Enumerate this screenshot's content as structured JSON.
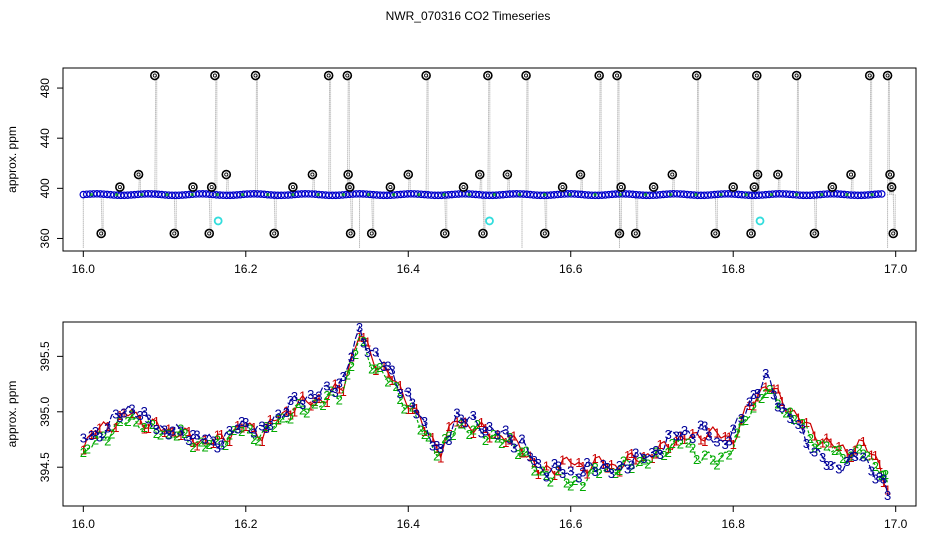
{
  "title": "NWR_070316  CO2 Timeseries",
  "colors": {
    "black": "#000000",
    "trace": "#999999",
    "blue": "#0000cc",
    "cyan": "#33dddd",
    "red": "#cc0000",
    "green": "#00aa00",
    "dark_blue": "#000099"
  },
  "chart_data": [
    {
      "type": "scatter",
      "ylabel": "approx. ppm",
      "xlim": [
        15.975,
        17.025
      ],
      "ylim": [
        350,
        496
      ],
      "x_ticks": [
        16.0,
        16.2,
        16.4,
        16.6,
        16.8,
        17.0
      ],
      "x_tick_labels": [
        "16.0",
        "16.2",
        "16.4",
        "16.6",
        "16.8",
        "17.0"
      ],
      "y_ticks": [
        360,
        400,
        440,
        480
      ],
      "y_tick_labels": [
        "360",
        "400",
        "440",
        "480"
      ],
      "baseline_ppm": 395,
      "series": [
        {
          "role": "calibration-markers",
          "color": "#000000",
          "points": [
            [
              16.022,
              364
            ],
            [
              16.045,
              401
            ],
            [
              16.068,
              411
            ],
            [
              16.088,
              490
            ],
            [
              16.112,
              364
            ],
            [
              16.135,
              401
            ],
            [
              16.155,
              364
            ],
            [
              16.158,
              401
            ],
            [
              16.162,
              490
            ],
            [
              16.176,
              411
            ],
            [
              16.212,
              490
            ],
            [
              16.235,
              364
            ],
            [
              16.258,
              401
            ],
            [
              16.282,
              411
            ],
            [
              16.302,
              490
            ],
            [
              16.325,
              490
            ],
            [
              16.326,
              411
            ],
            [
              16.328,
              401
            ],
            [
              16.329,
              364
            ],
            [
              16.355,
              364
            ],
            [
              16.378,
              401
            ],
            [
              16.4,
              411
            ],
            [
              16.422,
              490
            ],
            [
              16.445,
              364
            ],
            [
              16.468,
              401
            ],
            [
              16.488,
              411
            ],
            [
              16.492,
              364
            ],
            [
              16.498,
              490
            ],
            [
              16.522,
              411
            ],
            [
              16.545,
              490
            ],
            [
              16.568,
              364
            ],
            [
              16.59,
              401
            ],
            [
              16.612,
              411
            ],
            [
              16.635,
              490
            ],
            [
              16.657,
              490
            ],
            [
              16.66,
              364
            ],
            [
              16.662,
              401
            ],
            [
              16.68,
              364
            ],
            [
              16.702,
              401
            ],
            [
              16.725,
              411
            ],
            [
              16.755,
              490
            ],
            [
              16.778,
              364
            ],
            [
              16.8,
              401
            ],
            [
              16.822,
              364
            ],
            [
              16.826,
              401
            ],
            [
              16.829,
              490
            ],
            [
              16.83,
              411
            ],
            [
              16.855,
              411
            ],
            [
              16.878,
              490
            ],
            [
              16.9,
              364
            ],
            [
              16.922,
              401
            ],
            [
              16.945,
              411
            ],
            [
              16.968,
              490
            ],
            [
              16.99,
              490
            ],
            [
              16.993,
              411
            ],
            [
              16.995,
              401
            ],
            [
              16.997,
              364
            ]
          ]
        },
        {
          "role": "cyan-markers",
          "color": "#33dddd",
          "points": [
            [
              16.166,
              374
            ],
            [
              16.5,
              374
            ],
            [
              16.833,
              374
            ]
          ]
        }
      ]
    },
    {
      "type": "line",
      "ylabel": "approx. ppm",
      "xlim": [
        15.975,
        17.025
      ],
      "ylim": [
        394.15,
        395.81
      ],
      "x_ticks": [
        16.0,
        16.2,
        16.4,
        16.6,
        16.8,
        17.0
      ],
      "x_tick_labels": [
        "16.0",
        "16.2",
        "16.4",
        "16.6",
        "16.8",
        "17.0"
      ],
      "y_ticks": [
        394.5,
        395.0,
        395.5
      ],
      "y_tick_labels": [
        "394.5",
        "395.0",
        "395.5"
      ],
      "x": [
        16.0,
        16.02,
        16.04,
        16.06,
        16.08,
        16.1,
        16.12,
        16.14,
        16.16,
        16.18,
        16.2,
        16.22,
        16.24,
        16.26,
        16.28,
        16.3,
        16.32,
        16.34,
        16.36,
        16.38,
        16.4,
        16.42,
        16.44,
        16.46,
        16.48,
        16.5,
        16.52,
        16.54,
        16.56,
        16.58,
        16.6,
        16.62,
        16.64,
        16.66,
        16.68,
        16.7,
        16.72,
        16.74,
        16.76,
        16.78,
        16.8,
        16.82,
        16.84,
        16.86,
        16.88,
        16.9,
        16.92,
        16.94,
        16.96,
        16.98,
        16.99
      ],
      "series": [
        {
          "name": "1",
          "color": "#cc0000",
          "values": [
            394.7,
            394.85,
            394.9,
            395.0,
            394.88,
            394.85,
            394.8,
            394.75,
            394.72,
            394.8,
            394.88,
            394.8,
            394.95,
            395.05,
            395.1,
            395.12,
            395.25,
            395.7,
            395.45,
            395.3,
            395.1,
            394.85,
            394.65,
            394.95,
            394.85,
            394.82,
            394.75,
            394.7,
            394.45,
            394.5,
            394.55,
            394.5,
            394.55,
            394.5,
            394.6,
            394.6,
            394.72,
            394.75,
            394.8,
            394.8,
            394.75,
            395.05,
            395.25,
            395.1,
            394.95,
            394.8,
            394.7,
            394.65,
            394.7,
            394.55,
            394.3
          ]
        },
        {
          "name": "2",
          "color": "#00aa00",
          "values": [
            394.6,
            394.78,
            394.85,
            394.95,
            394.85,
            394.82,
            394.78,
            394.72,
            394.7,
            394.78,
            394.85,
            394.78,
            394.92,
            395.0,
            395.05,
            395.1,
            395.2,
            395.65,
            395.4,
            395.25,
            395.05,
            394.8,
            394.62,
            394.9,
            394.82,
            394.8,
            394.72,
            394.68,
            394.42,
            394.45,
            394.35,
            394.4,
            394.5,
            394.48,
            394.55,
            394.55,
            394.7,
            394.72,
            394.6,
            394.55,
            394.7,
            395.0,
            395.2,
            395.05,
            394.9,
            394.75,
            394.65,
            394.6,
            394.65,
            394.5,
            394.35
          ]
        },
        {
          "name": "3",
          "color": "#000099",
          "values": [
            394.75,
            394.8,
            394.95,
            395.05,
            394.9,
            394.85,
            394.8,
            394.78,
            394.72,
            394.8,
            394.9,
            394.82,
            394.98,
            395.08,
            395.15,
            395.18,
            395.3,
            395.72,
            395.5,
            395.35,
            395.12,
            394.9,
            394.6,
            394.98,
            394.9,
            394.85,
            394.78,
            394.72,
            394.5,
            394.48,
            394.45,
            394.48,
            394.52,
            394.45,
            394.62,
            394.58,
            394.78,
            394.8,
            394.85,
            394.72,
            394.8,
            395.1,
            395.3,
            395.05,
            394.85,
            394.65,
            394.5,
            394.55,
            394.6,
            394.4,
            394.25
          ]
        }
      ]
    }
  ]
}
